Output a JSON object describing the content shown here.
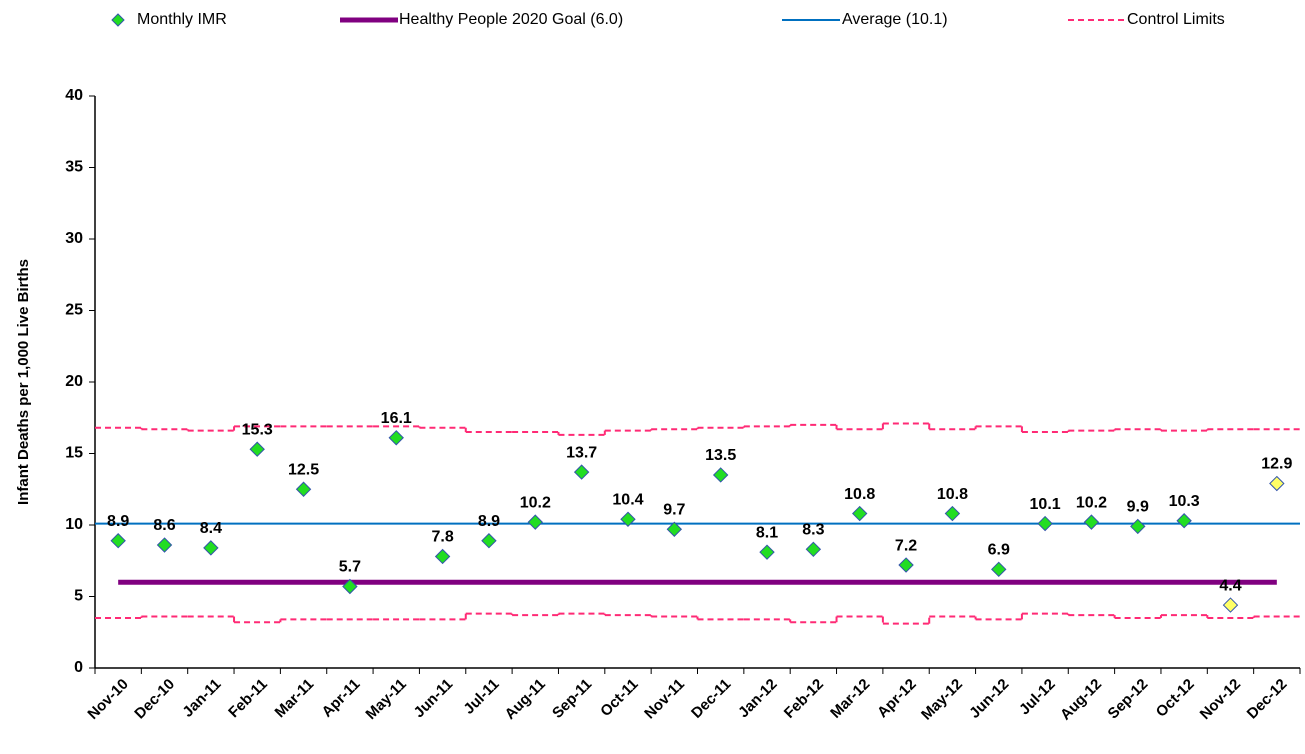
{
  "chart_data": {
    "type": "control",
    "ylabel": "Infant Deaths  per 1,000 Live Births",
    "categories": [
      "Nov-10",
      "Dec-10",
      "Jan-11",
      "Feb-11",
      "Mar-11",
      "Apr-11",
      "May-11",
      "Jun-11",
      "Jul-11",
      "Aug-11",
      "Sep-11",
      "Oct-11",
      "Nov-11",
      "Dec-11",
      "Jan-12",
      "Feb-12",
      "Mar-12",
      "Apr-12",
      "May-12",
      "Jun-12",
      "Jul-12",
      "Aug-12",
      "Sep-12",
      "Oct-12",
      "Nov-12",
      "Dec-12"
    ],
    "points": {
      "name": "Monthly IMR",
      "values": [
        8.9,
        8.6,
        8.4,
        15.3,
        12.5,
        5.7,
        16.1,
        7.8,
        8.9,
        10.2,
        13.7,
        10.4,
        9.7,
        13.5,
        8.1,
        8.3,
        10.8,
        7.2,
        10.8,
        6.9,
        10.1,
        10.2,
        9.9,
        10.3,
        4.4,
        12.9
      ],
      "colors": [
        "#22dd22",
        "#22dd22",
        "#22dd22",
        "#22dd22",
        "#22dd22",
        "#22dd22",
        "#22dd22",
        "#22dd22",
        "#22dd22",
        "#22dd22",
        "#22dd22",
        "#22dd22",
        "#22dd22",
        "#22dd22",
        "#22dd22",
        "#22dd22",
        "#22dd22",
        "#22dd22",
        "#22dd22",
        "#22dd22",
        "#22dd22",
        "#22dd22",
        "#22dd22",
        "#22dd22",
        "#ffff66",
        "#ffff66"
      ]
    },
    "reference_lines": [
      {
        "name": "Healthy People 2020 Goal (6.0)",
        "value": 6.0,
        "color": "#800080",
        "width": 5
      },
      {
        "name": "Average (10.1)",
        "value": 10.1,
        "color": "#0070c0",
        "width": 2
      }
    ],
    "control_limits": {
      "name": "Control Limits",
      "color": "#ff2a75",
      "upper": [
        16.8,
        16.7,
        16.6,
        16.9,
        16.9,
        16.9,
        16.9,
        16.8,
        16.5,
        16.5,
        16.3,
        16.6,
        16.7,
        16.8,
        16.9,
        17.0,
        16.7,
        17.1,
        16.7,
        16.9,
        16.5,
        16.6,
        16.7,
        16.6,
        16.7,
        16.7
      ],
      "lower": [
        3.5,
        3.6,
        3.6,
        3.2,
        3.4,
        3.4,
        3.4,
        3.4,
        3.8,
        3.7,
        3.8,
        3.7,
        3.6,
        3.4,
        3.4,
        3.2,
        3.6,
        3.1,
        3.6,
        3.4,
        3.8,
        3.7,
        3.5,
        3.7,
        3.5,
        3.6
      ]
    },
    "ylim": [
      0,
      40
    ],
    "yticks": [
      0,
      5,
      10,
      15,
      20,
      25,
      30,
      35,
      40
    ]
  }
}
